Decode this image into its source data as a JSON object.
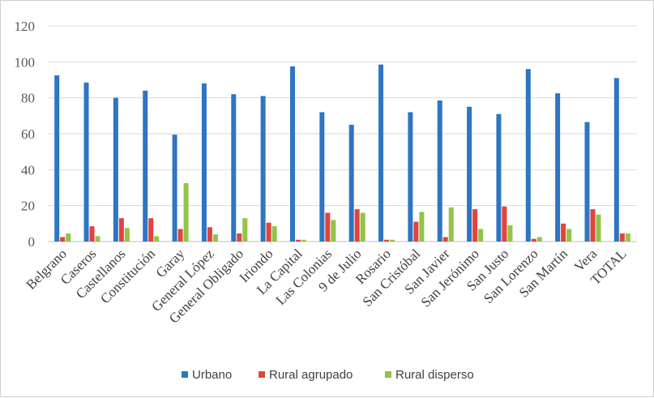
{
  "chart_data": {
    "type": "bar",
    "title": "",
    "xlabel": "",
    "ylabel": "",
    "ylim": [
      0,
      120
    ],
    "yticks": [
      "0",
      "20",
      "40",
      "60",
      "80",
      "100",
      "120"
    ],
    "grid": true,
    "legend_position": "bottom",
    "categories": [
      "Belgrano",
      "Caseros",
      "Castellanos",
      "Constitución",
      "Garay",
      "General López",
      "General Obligado",
      "Iriondo",
      "La Capital",
      "Las Colonias",
      "9 de Julio",
      "Rosario",
      "San Cristóbal",
      "San Javier",
      "San Jerónimo",
      "San Justo",
      "San Lorenzo",
      "San Martín",
      "Vera",
      "TOTAL"
    ],
    "series": [
      {
        "name": "Urbano",
        "color": "#2e75c4",
        "values": [
          92.5,
          88.5,
          80,
          84,
          59.5,
          88,
          82,
          81,
          97.5,
          72,
          65,
          98.5,
          72,
          78.5,
          75,
          71,
          96,
          82.5,
          66.5,
          91
        ]
      },
      {
        "name": "Rural agrupado",
        "color": "#e0443c",
        "values": [
          2.5,
          8.5,
          13,
          13,
          7,
          8,
          4.5,
          10.5,
          1,
          16,
          18,
          1,
          11,
          2.5,
          18,
          19.5,
          1.5,
          10,
          18,
          4.5
        ]
      },
      {
        "name": "Rural disperso",
        "color": "#92c448",
        "values": [
          4.5,
          3,
          7.5,
          3,
          32.5,
          4,
          13,
          8.5,
          1,
          12,
          16,
          1,
          16.5,
          19,
          7,
          9,
          2.5,
          7,
          15,
          4.5
        ]
      }
    ]
  }
}
